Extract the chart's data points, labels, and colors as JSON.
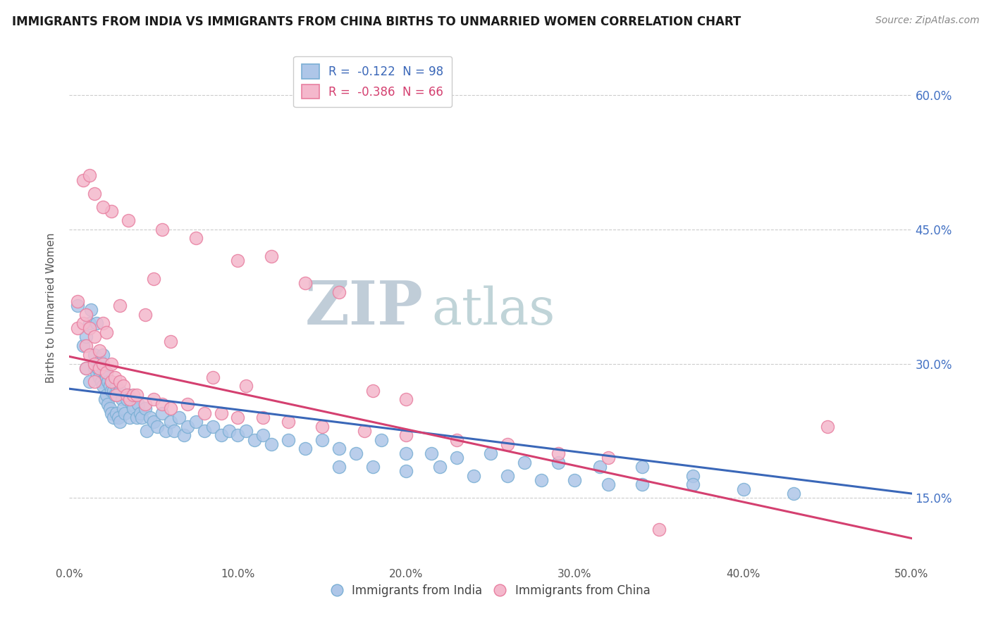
{
  "title": "IMMIGRANTS FROM INDIA VS IMMIGRANTS FROM CHINA BIRTHS TO UNMARRIED WOMEN CORRELATION CHART",
  "source": "Source: ZipAtlas.com",
  "ylabel": "Births to Unmarried Women",
  "xmin": 0.0,
  "xmax": 0.5,
  "ymin": 0.075,
  "ymax": 0.65,
  "yticks": [
    0.15,
    0.3,
    0.45,
    0.6
  ],
  "ytick_labels": [
    "15.0%",
    "30.0%",
    "45.0%",
    "60.0%"
  ],
  "xticks": [
    0.0,
    0.1,
    0.2,
    0.3,
    0.4,
    0.5
  ],
  "xtick_labels": [
    "0.0%",
    "10.0%",
    "20.0%",
    "30.0%",
    "40.0%",
    "50.0%"
  ],
  "india_color": "#aec6e8",
  "china_color": "#f4b8cc",
  "india_edge": "#7aafd4",
  "china_edge": "#e87fa0",
  "india_line_color": "#3a67b8",
  "china_line_color": "#d44070",
  "legend_label_india": "R =  -0.122  N = 98",
  "legend_label_china": "R =  -0.386  N = 66",
  "india_scatter_x": [
    0.005,
    0.008,
    0.01,
    0.01,
    0.012,
    0.012,
    0.013,
    0.015,
    0.015,
    0.016,
    0.016,
    0.017,
    0.018,
    0.018,
    0.019,
    0.02,
    0.02,
    0.02,
    0.021,
    0.021,
    0.022,
    0.022,
    0.023,
    0.023,
    0.024,
    0.024,
    0.025,
    0.025,
    0.026,
    0.026,
    0.027,
    0.028,
    0.028,
    0.029,
    0.03,
    0.03,
    0.031,
    0.032,
    0.033,
    0.034,
    0.035,
    0.036,
    0.037,
    0.038,
    0.04,
    0.041,
    0.042,
    0.043,
    0.045,
    0.046,
    0.048,
    0.05,
    0.052,
    0.055,
    0.057,
    0.06,
    0.062,
    0.065,
    0.068,
    0.07,
    0.075,
    0.08,
    0.085,
    0.09,
    0.095,
    0.1,
    0.105,
    0.11,
    0.115,
    0.12,
    0.13,
    0.14,
    0.15,
    0.16,
    0.17,
    0.185,
    0.2,
    0.215,
    0.23,
    0.25,
    0.27,
    0.29,
    0.315,
    0.34,
    0.37,
    0.16,
    0.18,
    0.2,
    0.22,
    0.24,
    0.26,
    0.28,
    0.3,
    0.32,
    0.34,
    0.37,
    0.4,
    0.43
  ],
  "india_scatter_y": [
    0.365,
    0.32,
    0.33,
    0.295,
    0.345,
    0.28,
    0.36,
    0.31,
    0.295,
    0.345,
    0.29,
    0.295,
    0.305,
    0.285,
    0.28,
    0.31,
    0.295,
    0.275,
    0.29,
    0.26,
    0.285,
    0.265,
    0.28,
    0.255,
    0.275,
    0.25,
    0.27,
    0.245,
    0.27,
    0.24,
    0.265,
    0.275,
    0.245,
    0.24,
    0.27,
    0.235,
    0.26,
    0.25,
    0.245,
    0.26,
    0.265,
    0.24,
    0.255,
    0.25,
    0.24,
    0.255,
    0.245,
    0.24,
    0.25,
    0.225,
    0.24,
    0.235,
    0.23,
    0.245,
    0.225,
    0.235,
    0.225,
    0.24,
    0.22,
    0.23,
    0.235,
    0.225,
    0.23,
    0.22,
    0.225,
    0.22,
    0.225,
    0.215,
    0.22,
    0.21,
    0.215,
    0.205,
    0.215,
    0.205,
    0.2,
    0.215,
    0.2,
    0.2,
    0.195,
    0.2,
    0.19,
    0.19,
    0.185,
    0.185,
    0.175,
    0.185,
    0.185,
    0.18,
    0.185,
    0.175,
    0.175,
    0.17,
    0.17,
    0.165,
    0.165,
    0.165,
    0.16,
    0.155
  ],
  "china_scatter_x": [
    0.005,
    0.005,
    0.008,
    0.01,
    0.01,
    0.012,
    0.012,
    0.015,
    0.015,
    0.015,
    0.018,
    0.018,
    0.02,
    0.02,
    0.022,
    0.022,
    0.025,
    0.025,
    0.027,
    0.028,
    0.03,
    0.032,
    0.034,
    0.036,
    0.038,
    0.04,
    0.045,
    0.05,
    0.055,
    0.06,
    0.07,
    0.08,
    0.09,
    0.1,
    0.115,
    0.13,
    0.15,
    0.175,
    0.2,
    0.23,
    0.26,
    0.29,
    0.32,
    0.14,
    0.16,
    0.12,
    0.1,
    0.075,
    0.055,
    0.035,
    0.025,
    0.015,
    0.008,
    0.03,
    0.045,
    0.06,
    0.085,
    0.105,
    0.01,
    0.02,
    0.05,
    0.012,
    0.18,
    0.2,
    0.35,
    0.45
  ],
  "china_scatter_y": [
    0.37,
    0.34,
    0.345,
    0.32,
    0.295,
    0.31,
    0.34,
    0.33,
    0.3,
    0.28,
    0.315,
    0.295,
    0.345,
    0.3,
    0.335,
    0.29,
    0.3,
    0.28,
    0.285,
    0.265,
    0.28,
    0.275,
    0.265,
    0.26,
    0.265,
    0.265,
    0.255,
    0.26,
    0.255,
    0.25,
    0.255,
    0.245,
    0.245,
    0.24,
    0.24,
    0.235,
    0.23,
    0.225,
    0.22,
    0.215,
    0.21,
    0.2,
    0.195,
    0.39,
    0.38,
    0.42,
    0.415,
    0.44,
    0.45,
    0.46,
    0.47,
    0.49,
    0.505,
    0.365,
    0.355,
    0.325,
    0.285,
    0.275,
    0.355,
    0.475,
    0.395,
    0.51,
    0.27,
    0.26,
    0.115,
    0.23
  ],
  "background_color": "#ffffff",
  "grid_color": "#cccccc",
  "watermark_text1": "ZIP",
  "watermark_text2": "atlas",
  "watermark_color1": "#b8c8d8",
  "watermark_color2": "#b8c8d8"
}
